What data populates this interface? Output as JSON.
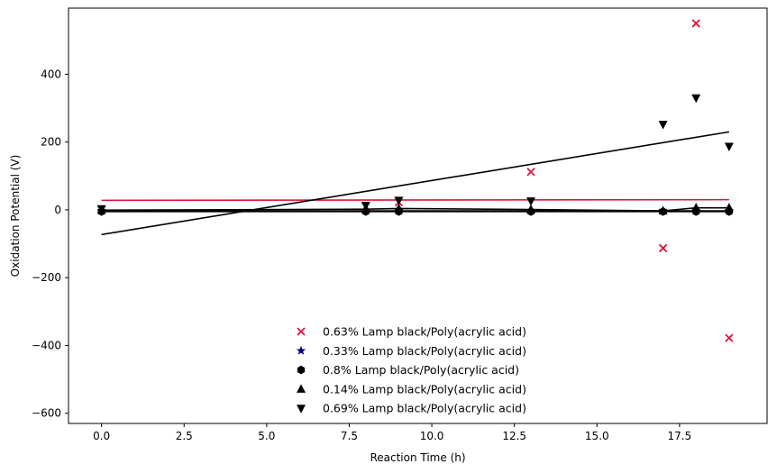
{
  "chart_data": {
    "type": "scatter",
    "title": "",
    "xlabel": "Reaction Time (h)",
    "ylabel": "Oxidation Potential (V)",
    "xlim": [
      -1,
      20.15
    ],
    "ylim": [
      -630,
      595
    ],
    "xticks": [
      0.0,
      2.5,
      5.0,
      7.5,
      10.0,
      12.5,
      15.0,
      17.5
    ],
    "xtick_labels": [
      "0.0",
      "2.5",
      "5.0",
      "7.5",
      "10.0",
      "12.5",
      "15.0",
      "17.5"
    ],
    "yticks": [
      -600,
      -400,
      -200,
      0,
      200,
      400
    ],
    "ytick_labels": [
      "−600",
      "−400",
      "−200",
      "0",
      "200",
      "400"
    ],
    "grid": false,
    "legend_position": "lower-center",
    "series": [
      {
        "name": "0.63% Lamp black/Poly(acrylic acid)",
        "marker": "x",
        "color": "#dc143c",
        "x": [
          0,
          8,
          9,
          13,
          17,
          18,
          19
        ],
        "y": [
          0,
          10,
          22,
          112,
          -113,
          550,
          -378
        ],
        "fit_line": {
          "x": [
            0,
            19
          ],
          "y": [
            28,
            30
          ]
        }
      },
      {
        "name": "0.33% Lamp black/Poly(acrylic acid)",
        "marker": "star",
        "color": "#000080",
        "x": [
          0,
          8,
          9,
          13,
          17,
          18,
          19
        ],
        "y": [
          -3,
          -3,
          -3,
          -3,
          -3,
          -3,
          -3
        ],
        "fit_line": {
          "x": [
            0,
            19
          ],
          "y": [
            -3,
            -3
          ]
        }
      },
      {
        "name": "0.8% Lamp black/Poly(acrylic acid)",
        "marker": "hexagon",
        "color": "#000000",
        "x": [
          0,
          8,
          9,
          13,
          17,
          18,
          19
        ],
        "y": [
          -5,
          -5,
          -5,
          -5,
          -5,
          -5,
          -5
        ],
        "fit_line": {
          "x": [
            0,
            19
          ],
          "y": [
            -5,
            -5
          ]
        }
      },
      {
        "name": "0.14% Lamp black/Poly(acrylic acid)",
        "marker": "triangle-up",
        "color": "#000000",
        "x": [
          0,
          8,
          9,
          13,
          17,
          18,
          19
        ],
        "y": [
          -1,
          2,
          4,
          1,
          -3,
          6,
          6
        ],
        "connect": true
      },
      {
        "name": "0.69% Lamp black/Poly(acrylic acid)",
        "marker": "triangle-down",
        "color": "#000000",
        "x": [
          0,
          8,
          9,
          13,
          17,
          18,
          19
        ],
        "y": [
          3,
          13,
          28,
          26,
          252,
          330,
          187
        ],
        "fit_line": {
          "x": [
            0,
            19
          ],
          "y": [
            -73,
            230
          ]
        }
      }
    ]
  }
}
